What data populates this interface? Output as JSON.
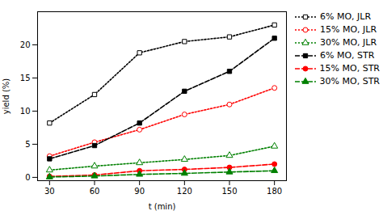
{
  "chart_data": {
    "type": "line",
    "x": [
      30,
      60,
      90,
      120,
      150,
      180
    ],
    "series": [
      {
        "name": "6% MO, JLR",
        "color": "black",
        "line_style": "dotted",
        "marker": "square-open",
        "values": [
          8.2,
          12.5,
          18.8,
          20.5,
          21.2,
          23.0
        ]
      },
      {
        "name": "15% MO, JLR",
        "color": "red",
        "line_style": "dotted",
        "marker": "circle-open",
        "values": [
          3.2,
          5.3,
          7.2,
          9.5,
          11.0,
          13.5
        ]
      },
      {
        "name": "30% MO, JLR",
        "color": "green",
        "line_style": "dotted",
        "marker": "triangle-open",
        "values": [
          1.1,
          1.7,
          2.2,
          2.7,
          3.3,
          4.7
        ]
      },
      {
        "name": "6% MO, STR",
        "color": "black",
        "line_style": "dashed",
        "marker": "square",
        "values": [
          2.8,
          4.8,
          8.2,
          13.0,
          16.0,
          21.0
        ]
      },
      {
        "name": "15% MO, STR",
        "color": "red",
        "line_style": "dashed",
        "marker": "circle",
        "values": [
          0.15,
          0.35,
          1.0,
          1.2,
          1.5,
          2.0
        ]
      },
      {
        "name": "30% MO, STR",
        "color": "green",
        "line_style": "dashed",
        "marker": "triangle",
        "values": [
          0.05,
          0.2,
          0.45,
          0.6,
          0.8,
          1.0
        ]
      }
    ],
    "xlabel": "t (min)",
    "ylabel": "yield (%)",
    "xlim": [
      22,
      188
    ],
    "ylim": [
      -0.5,
      25
    ],
    "xticks": [
      30,
      60,
      90,
      120,
      150,
      180
    ],
    "yticks": [
      0,
      5,
      10,
      15,
      20
    ],
    "legend": "upper right"
  }
}
